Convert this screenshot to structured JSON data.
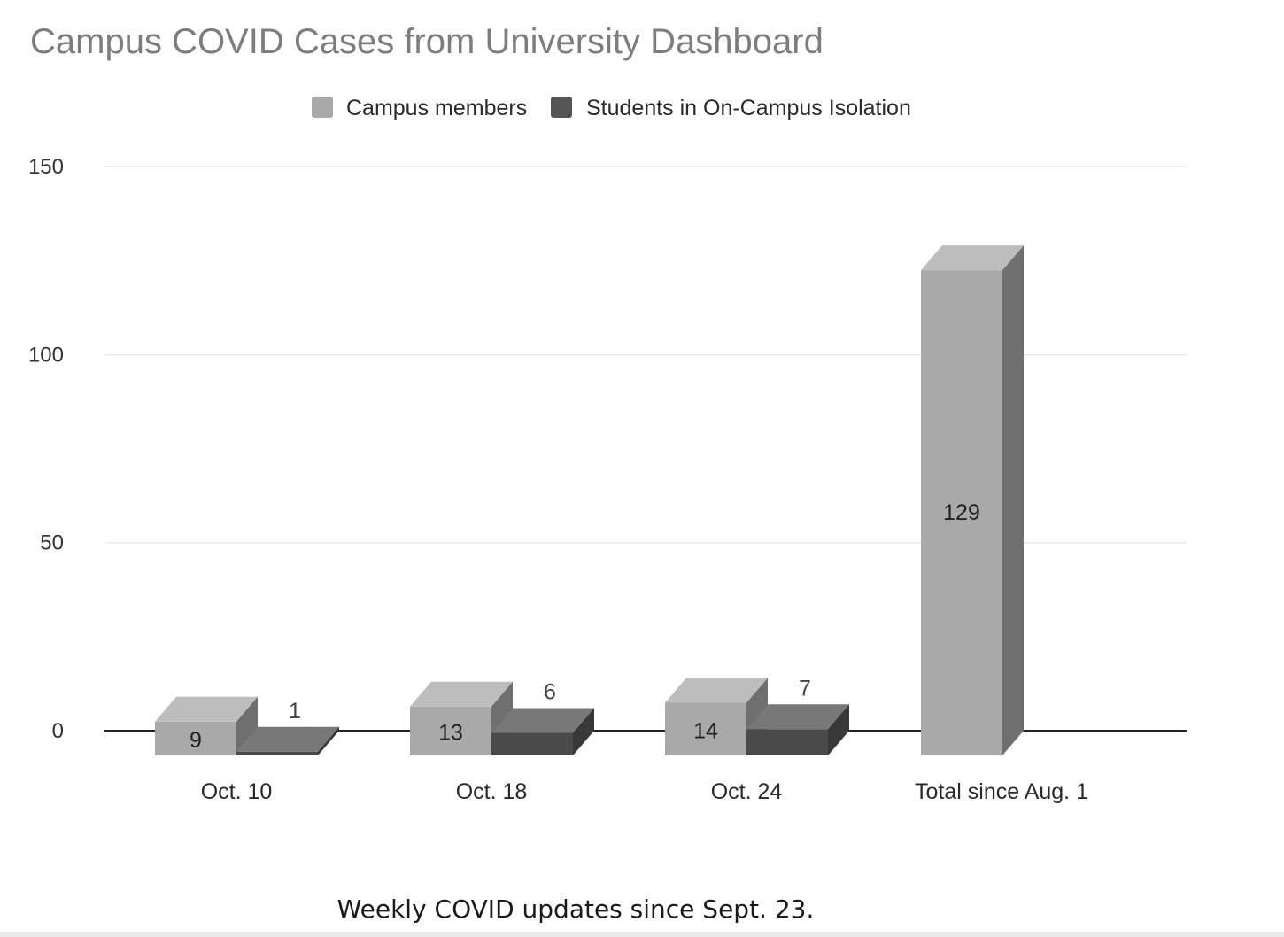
{
  "chart_data": {
    "type": "bar",
    "title": "Campus COVID Cases from University Dashboard",
    "categories": [
      "Oct. 10",
      "Oct. 18",
      "Oct. 24",
      "Total since Aug. 1"
    ],
    "series": [
      {
        "name": "Campus members",
        "values": [
          9,
          13,
          14,
          129
        ],
        "color": "#a9a9a9"
      },
      {
        "name": "Students in On-Campus Isolation",
        "values": [
          1,
          6,
          7,
          null
        ],
        "color": "#555555"
      }
    ],
    "y_ticks": [
      0,
      50,
      100,
      150
    ],
    "ylim": [
      0,
      150
    ],
    "grid": true,
    "legend_position": "top",
    "style": "3d-bar"
  },
  "caption": "Weekly COVID  updates since Sept. 23."
}
